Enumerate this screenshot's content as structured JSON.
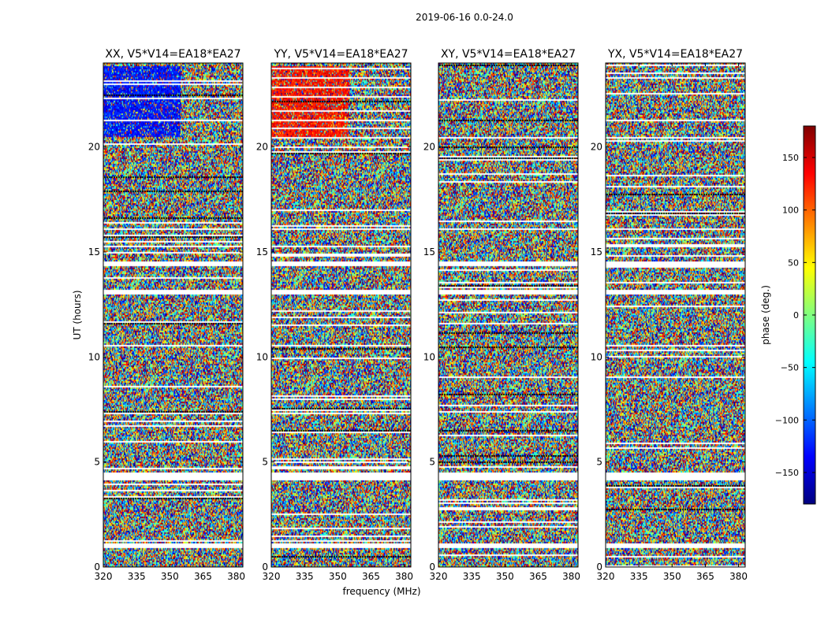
{
  "chart_data": {
    "type": "heatmap",
    "title": "2019-06-16 0.0-24.0",
    "ylabel": "UT (hours)",
    "xlabel": "frequency (MHz)",
    "xlim": [
      320,
      383
    ],
    "ylim": [
      0,
      24
    ],
    "xticks": [
      320,
      335,
      350,
      365,
      380
    ],
    "yticks": [
      0,
      5,
      10,
      15,
      20
    ],
    "panels": [
      {
        "name": "XX",
        "title": "XX, V5*V14=EA18*EA27"
      },
      {
        "name": "YY",
        "title": "YY, V5*V14=EA18*EA27"
      },
      {
        "name": "XY",
        "title": "XY, V5*V14=EA18*EA27"
      },
      {
        "name": "YX",
        "title": "YX, V5*V14=EA18*EA27"
      }
    ],
    "colorbar": {
      "label": "phase (deg.)",
      "range": [
        -180,
        180
      ],
      "ticks": [
        -150,
        -100,
        -50,
        0,
        50,
        100,
        150
      ],
      "tick_labels": [
        "−150",
        "−100",
        "−50",
        "0",
        "50",
        "100",
        "150"
      ],
      "colormap": "jet"
    },
    "flagged_gaps_ut": [
      [
        0.95,
        1.2
      ],
      [
        4.15,
        4.5
      ],
      [
        13.0,
        13.22
      ],
      [
        14.35,
        14.55
      ],
      [
        16.05,
        16.2
      ]
    ],
    "blanking_frac": 0.55
  }
}
